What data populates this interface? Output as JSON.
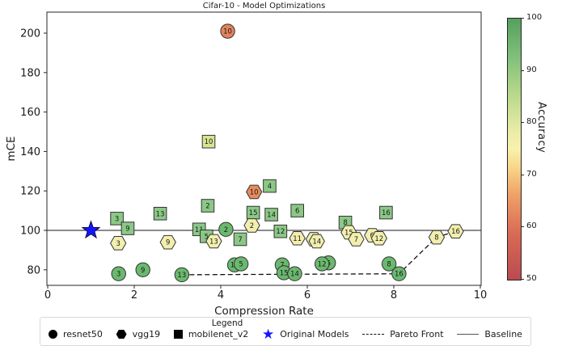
{
  "chart_data": {
    "type": "scatter",
    "title": "Cifar-10 - Model Optimizations",
    "xlabel": "Compression Rate",
    "ylabel": "mCE",
    "xlim": [
      0,
      10
    ],
    "ylim": [
      72,
      210
    ],
    "x_ticks": [
      0,
      2,
      4,
      6,
      8,
      10
    ],
    "y_ticks": [
      80,
      100,
      120,
      140,
      160,
      180,
      200
    ],
    "grid": false,
    "baseline_mce": 100,
    "original_model": {
      "x": 1.0,
      "y": 100,
      "marker": "star",
      "color": "#1414ff"
    },
    "pareto_front": [
      [
        3.1,
        77.5
      ],
      [
        8.12,
        78
      ],
      [
        8.99,
        96.5
      ],
      [
        9.43,
        99.5
      ]
    ],
    "draw_order": [
      "mobilenet_v2",
      "vgg19",
      "resnet50"
    ],
    "colorbar": {
      "label": "Accuracy",
      "min": 50,
      "max": 100,
      "ticks": [
        100,
        90,
        80,
        70,
        60,
        50
      ],
      "gradient_top_to_bottom": [
        {
          "p": 0,
          "c": "#55a05d"
        },
        {
          "p": 15,
          "c": "#82c07a"
        },
        {
          "p": 30,
          "c": "#bcda8c"
        },
        {
          "p": 44,
          "c": "#eceda8"
        },
        {
          "p": 50,
          "c": "#f8f1ae"
        },
        {
          "p": 57,
          "c": "#f8d68a"
        },
        {
          "p": 68,
          "c": "#ee9f66"
        },
        {
          "p": 82,
          "c": "#da6b55"
        },
        {
          "p": 100,
          "c": "#bb4a50"
        }
      ]
    },
    "series": [
      {
        "name": "resnet50",
        "marker": "circle",
        "points": [
          {
            "label": "3",
            "x": 1.64,
            "y": 78,
            "color": "#6ab96e"
          },
          {
            "label": "9",
            "x": 2.2,
            "y": 80,
            "color": "#6ab96e"
          },
          {
            "label": "13",
            "x": 3.1,
            "y": 77.5,
            "color": "#6ab96e"
          },
          {
            "label": "10",
            "x": 4.16,
            "y": 201,
            "color": "#e2835c"
          },
          {
            "label": "2",
            "x": 4.12,
            "y": 100.5,
            "color": "#6ab96e"
          },
          {
            "label": "11",
            "x": 4.32,
            "y": 82.5,
            "color": "#6ab96e"
          },
          {
            "label": "5",
            "x": 4.47,
            "y": 83,
            "color": "#6ab96e"
          },
          {
            "label": "7",
            "x": 5.42,
            "y": 82.5,
            "color": "#6ab96e"
          },
          {
            "label": "15",
            "x": 5.46,
            "y": 78.5,
            "color": "#6ab96e"
          },
          {
            "label": "14",
            "x": 5.71,
            "y": 78,
            "color": "#6ab96e"
          },
          {
            "label": "6",
            "x": 6.49,
            "y": 83.5,
            "color": "#6ab96e"
          },
          {
            "label": "12",
            "x": 6.34,
            "y": 83,
            "color": "#6ab96e"
          },
          {
            "label": "8",
            "x": 7.89,
            "y": 83,
            "color": "#6ab96e"
          },
          {
            "label": "16",
            "x": 8.12,
            "y": 78,
            "color": "#6ab96e"
          }
        ]
      },
      {
        "name": "vgg19",
        "marker": "hexagon",
        "points": [
          {
            "label": "3",
            "x": 1.63,
            "y": 93.5,
            "color": "#f2efae"
          },
          {
            "label": "9",
            "x": 2.78,
            "y": 94,
            "color": "#f2efae"
          },
          {
            "label": "13",
            "x": 3.84,
            "y": 94.5,
            "color": "#f2efae"
          },
          {
            "label": "2",
            "x": 4.72,
            "y": 102.5,
            "color": "#f2efae"
          },
          {
            "label": "10",
            "x": 4.77,
            "y": 119.5,
            "color": "#e78b5e"
          },
          {
            "label": "11",
            "x": 5.77,
            "y": 96,
            "color": "#f2efae"
          },
          {
            "label": "5",
            "x": 6.15,
            "y": 95.5,
            "color": "#f2efae"
          },
          {
            "label": "14",
            "x": 6.22,
            "y": 94.5,
            "color": "#f2efae"
          },
          {
            "label": "15",
            "x": 6.96,
            "y": 99,
            "color": "#f2efae"
          },
          {
            "label": "7",
            "x": 7.13,
            "y": 95.5,
            "color": "#f2efae"
          },
          {
            "label": "6",
            "x": 7.5,
            "y": 97.5,
            "color": "#f2efae"
          },
          {
            "label": "12",
            "x": 7.66,
            "y": 96,
            "color": "#f2efae"
          },
          {
            "label": "8",
            "x": 8.99,
            "y": 96.5,
            "color": "#f2efae"
          },
          {
            "label": "16",
            "x": 9.43,
            "y": 99.5,
            "color": "#f2efae"
          }
        ]
      },
      {
        "name": "mobilenet_v2",
        "marker": "square",
        "points": [
          {
            "label": "3",
            "x": 1.6,
            "y": 106,
            "color": "#8bc886"
          },
          {
            "label": "9",
            "x": 1.85,
            "y": 101,
            "color": "#8bc886"
          },
          {
            "label": "13",
            "x": 2.6,
            "y": 108.5,
            "color": "#8bc886"
          },
          {
            "label": "11",
            "x": 3.5,
            "y": 100.5,
            "color": "#8bc886"
          },
          {
            "label": "5",
            "x": 3.67,
            "y": 97,
            "color": "#8bc886"
          },
          {
            "label": "2",
            "x": 3.7,
            "y": 112.5,
            "color": "#8bc886"
          },
          {
            "label": "10",
            "x": 3.72,
            "y": 145,
            "color": "#d9e492"
          },
          {
            "label": "7",
            "x": 4.45,
            "y": 95.5,
            "color": "#8bc886"
          },
          {
            "label": "15",
            "x": 4.75,
            "y": 109,
            "color": "#8bc886"
          },
          {
            "label": "4",
            "x": 5.13,
            "y": 122.5,
            "color": "#8bc886"
          },
          {
            "label": "14",
            "x": 5.17,
            "y": 108,
            "color": "#8bc886"
          },
          {
            "label": "12",
            "x": 5.38,
            "y": 99.5,
            "color": "#8bc886"
          },
          {
            "label": "6",
            "x": 5.77,
            "y": 110,
            "color": "#8bc886"
          },
          {
            "label": "8",
            "x": 6.88,
            "y": 104,
            "color": "#8bc886"
          },
          {
            "label": "16",
            "x": 7.82,
            "y": 109,
            "color": "#8bc886"
          }
        ]
      }
    ]
  },
  "legend": {
    "title": "Legend",
    "items": [
      {
        "marker": "circle",
        "label": "resnet50",
        "color": "#000000"
      },
      {
        "marker": "hexagon",
        "label": "vgg19",
        "color": "#000000"
      },
      {
        "marker": "square",
        "label": "mobilenet_v2",
        "color": "#000000"
      },
      {
        "marker": "star",
        "label": "Original Models",
        "color": "#1414ff"
      },
      {
        "marker": "dashed-line",
        "label": "Pareto Front",
        "color": "#111111"
      },
      {
        "marker": "solid-line",
        "label": "Baseline",
        "color": "#555555"
      }
    ]
  }
}
